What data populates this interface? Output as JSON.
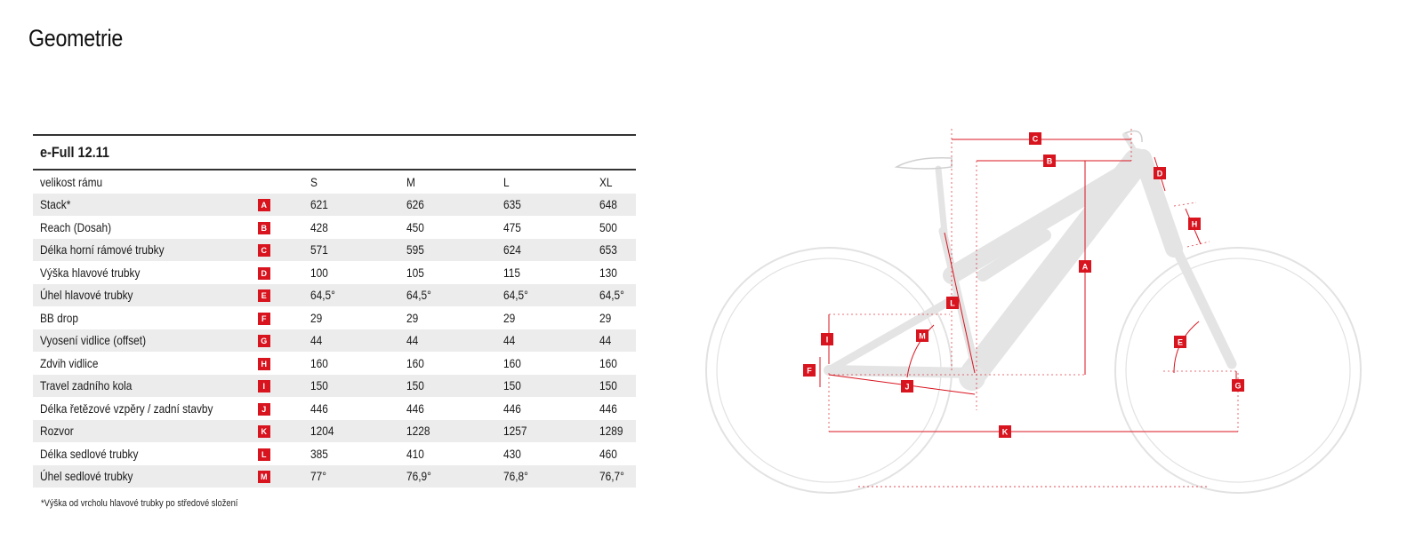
{
  "page_title": "Geometrie",
  "table": {
    "model": "e-Full 12.11",
    "header": {
      "label": "velikost rámu",
      "sizes": [
        "S",
        "M",
        "L",
        "XL"
      ]
    },
    "rows": [
      {
        "label": "Stack*",
        "code": "A",
        "values": [
          "621",
          "626",
          "635",
          "648"
        ]
      },
      {
        "label": "Reach (Dosah)",
        "code": "B",
        "values": [
          "428",
          "450",
          "475",
          "500"
        ]
      },
      {
        "label": "Délka horní rámové trubky",
        "code": "C",
        "values": [
          "571",
          "595",
          "624",
          "653"
        ]
      },
      {
        "label": "Výška hlavové trubky",
        "code": "D",
        "values": [
          "100",
          "105",
          "115",
          "130"
        ]
      },
      {
        "label": "Úhel hlavové trubky",
        "code": "E",
        "values": [
          "64,5°",
          "64,5°",
          "64,5°",
          "64,5°"
        ]
      },
      {
        "label": "BB drop",
        "code": "F",
        "values": [
          "29",
          "29",
          "29",
          "29"
        ]
      },
      {
        "label": "Vyosení vidlice (offset)",
        "code": "G",
        "values": [
          "44",
          "44",
          "44",
          "44"
        ]
      },
      {
        "label": "Zdvih vidlice",
        "code": "H",
        "values": [
          "160",
          "160",
          "160",
          "160"
        ]
      },
      {
        "label": "Travel zadního kola",
        "code": "I",
        "values": [
          "150",
          "150",
          "150",
          "150"
        ]
      },
      {
        "label": "Délka řetězové vzpěry / zadní stavby",
        "code": "J",
        "values": [
          "446",
          "446",
          "446",
          "446"
        ]
      },
      {
        "label": "Rozvor",
        "code": "K",
        "values": [
          "1204",
          "1228",
          "1257",
          "1289"
        ]
      },
      {
        "label": "Délka sedlové trubky",
        "code": "L",
        "values": [
          "385",
          "410",
          "430",
          "460"
        ]
      },
      {
        "label": "Úhel sedlové trubky",
        "code": "M",
        "values": [
          "77°",
          "76,9°",
          "76,8°",
          "76,7°"
        ]
      }
    ]
  },
  "footnote": "*Výška od vrcholu hlavové trubky po středové složení",
  "diagram": {
    "markers": [
      "A",
      "B",
      "C",
      "D",
      "E",
      "F",
      "G",
      "H",
      "I",
      "J",
      "K",
      "L",
      "M"
    ],
    "colors": {
      "accent": "#d8141f",
      "bike": "#e4e4e4"
    }
  }
}
